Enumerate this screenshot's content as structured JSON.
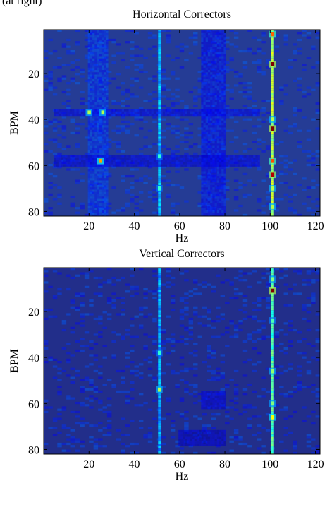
{
  "figure": {
    "top_caption_fragment": "(at right)"
  },
  "chart_data": [
    {
      "type": "heatmap",
      "title": "Horizontal Correctors",
      "xlabel": "Hz",
      "ylabel": "BPM",
      "xlim": [
        0,
        122
      ],
      "ylim": [
        82,
        1
      ],
      "x_ticks": [
        20,
        40,
        60,
        80,
        100,
        120
      ],
      "y_ticks": [
        20,
        40,
        60,
        80
      ],
      "colormap": "jet",
      "background_color": "#253c95",
      "features": [
        {
          "kind": "line",
          "x": 51,
          "y_range": [
            1,
            82
          ],
          "intensity": 0.3
        },
        {
          "kind": "line",
          "x": 101,
          "y_range": [
            1,
            82
          ],
          "intensity": 0.55
        },
        {
          "kind": "band",
          "x_range": [
            20,
            28
          ],
          "y_range": [
            1,
            82
          ],
          "intensity": 0.18
        },
        {
          "kind": "band",
          "x_range": [
            70,
            80
          ],
          "y_range": [
            1,
            82
          ],
          "intensity": 0.14
        },
        {
          "kind": "band",
          "x_range": [
            5,
            95
          ],
          "y_range": [
            36,
            38
          ],
          "intensity": 0.12
        },
        {
          "kind": "band",
          "x_range": [
            5,
            95
          ],
          "y_range": [
            56,
            60
          ],
          "intensity": 0.1
        },
        {
          "kind": "spot",
          "x": 101,
          "y": 3,
          "intensity": 0.78
        },
        {
          "kind": "spot",
          "x": 101,
          "y": 16,
          "intensity": 1.0
        },
        {
          "kind": "spot",
          "x": 101,
          "y": 40,
          "intensity": 0.55
        },
        {
          "kind": "spot",
          "x": 101,
          "y": 44,
          "intensity": 1.0
        },
        {
          "kind": "spot",
          "x": 101,
          "y": 58,
          "intensity": 0.8
        },
        {
          "kind": "spot",
          "x": 101,
          "y": 64,
          "intensity": 0.95
        },
        {
          "kind": "spot",
          "x": 101,
          "y": 70,
          "intensity": 0.55
        },
        {
          "kind": "spot",
          "x": 101,
          "y": 78,
          "intensity": 0.55
        },
        {
          "kind": "spot",
          "x": 20,
          "y": 37,
          "intensity": 0.55
        },
        {
          "kind": "spot",
          "x": 26,
          "y": 37,
          "intensity": 0.55
        },
        {
          "kind": "spot",
          "x": 25,
          "y": 58,
          "intensity": 0.72
        },
        {
          "kind": "spot",
          "x": 51,
          "y": 56,
          "intensity": 0.42
        },
        {
          "kind": "spot",
          "x": 51,
          "y": 70,
          "intensity": 0.42
        }
      ]
    },
    {
      "type": "heatmap",
      "title": "Vertical Correctors",
      "xlabel": "Hz",
      "ylabel": "BPM",
      "xlim": [
        0,
        122
      ],
      "ylim": [
        82,
        1
      ],
      "x_ticks": [
        20,
        40,
        60,
        80,
        100,
        120
      ],
      "y_ticks": [
        20,
        40,
        60,
        80
      ],
      "colormap": "jet",
      "background_color": "#222e8a",
      "features": [
        {
          "kind": "line",
          "x": 51,
          "y_range": [
            1,
            82
          ],
          "intensity": 0.28
        },
        {
          "kind": "line",
          "x": 101,
          "y_range": [
            1,
            82
          ],
          "intensity": 0.45
        },
        {
          "kind": "band",
          "x_range": [
            70,
            80
          ],
          "y_range": [
            55,
            62
          ],
          "intensity": 0.1
        },
        {
          "kind": "band",
          "x_range": [
            60,
            80
          ],
          "y_range": [
            72,
            78
          ],
          "intensity": 0.08
        },
        {
          "kind": "spot",
          "x": 101,
          "y": 11,
          "intensity": 1.0
        },
        {
          "kind": "spot",
          "x": 101,
          "y": 6,
          "intensity": 0.5
        },
        {
          "kind": "spot",
          "x": 101,
          "y": 24,
          "intensity": 0.45
        },
        {
          "kind": "spot",
          "x": 101,
          "y": 46,
          "intensity": 0.52
        },
        {
          "kind": "spot",
          "x": 101,
          "y": 60,
          "intensity": 0.5
        },
        {
          "kind": "spot",
          "x": 101,
          "y": 66,
          "intensity": 0.62
        },
        {
          "kind": "spot",
          "x": 51,
          "y": 38,
          "intensity": 0.42
        },
        {
          "kind": "spot",
          "x": 51,
          "y": 54,
          "intensity": 0.55
        }
      ]
    }
  ]
}
